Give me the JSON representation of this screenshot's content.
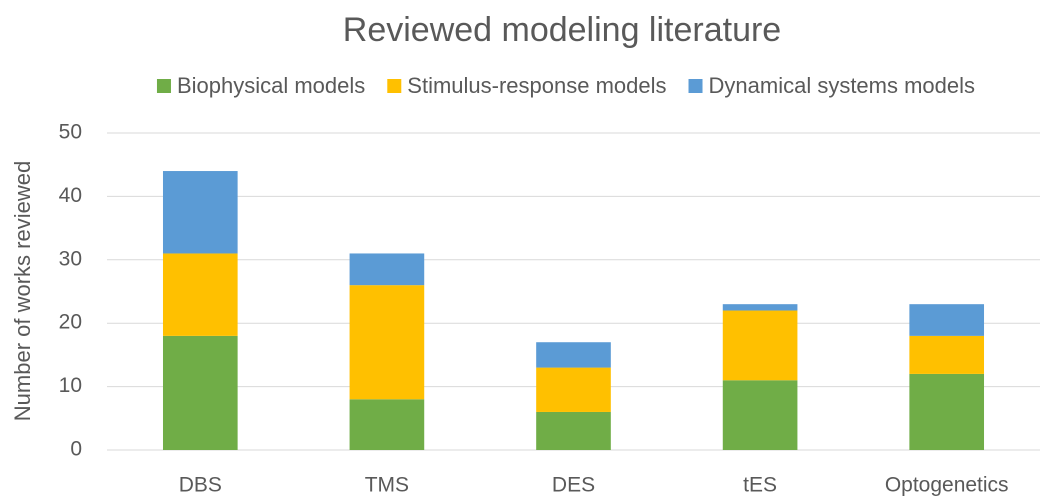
{
  "chart_data": {
    "type": "stacked_bar",
    "title": "Reviewed modeling literature",
    "y_label": "Number of works reviewed",
    "categories": [
      "DBS",
      "TMS",
      "DES",
      "tES",
      "Optogenetics"
    ],
    "series": [
      {
        "name": "Biophysical models",
        "color": "#70ad47",
        "values": [
          18,
          8,
          6,
          11,
          12
        ]
      },
      {
        "name": "Stimulus-response models",
        "color": "#ffc000",
        "values": [
          13,
          18,
          7,
          11,
          6
        ]
      },
      {
        "name": "Dynamical systems models",
        "color": "#5b9bd5",
        "values": [
          13,
          5,
          4,
          1,
          5
        ]
      }
    ],
    "ylim": [
      0,
      50
    ],
    "yticks": [
      0,
      10,
      20,
      30,
      40,
      50
    ],
    "grid": true,
    "legend": "top"
  }
}
